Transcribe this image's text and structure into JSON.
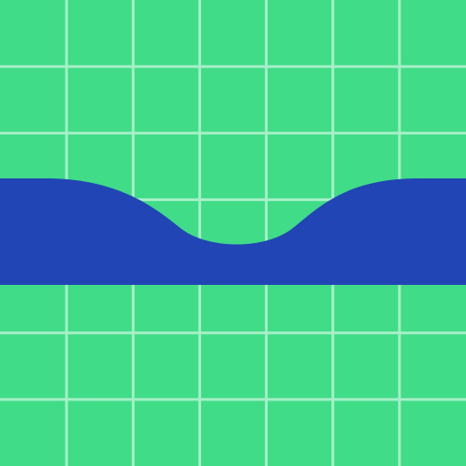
{
  "colors": {
    "background": "#40DC88",
    "grid": "#A6F0C6",
    "band": "#2145B4"
  },
  "grid": {
    "visible": true,
    "columns": 7,
    "rows": 7
  },
  "band": {
    "shape": "horizontal-band-with-dip"
  }
}
